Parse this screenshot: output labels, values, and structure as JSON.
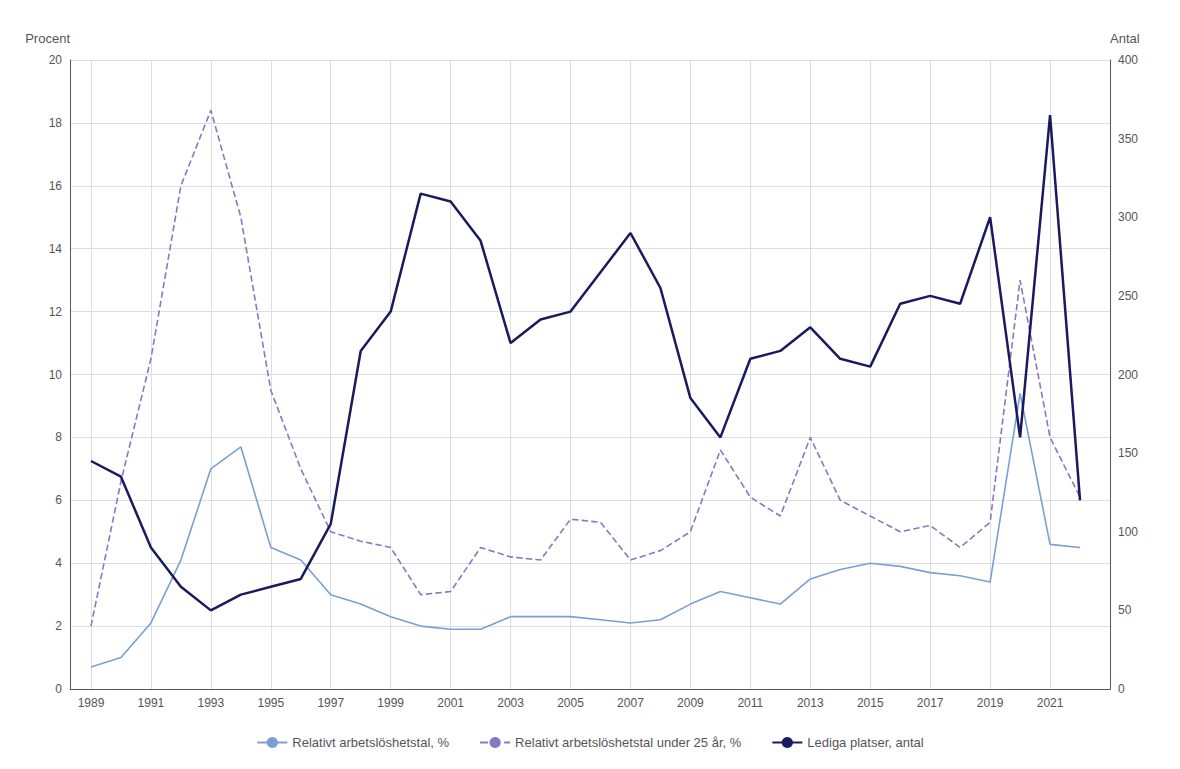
{
  "chart_data": {
    "type": "line",
    "x": [
      1989,
      1990,
      1991,
      1992,
      1993,
      1994,
      1995,
      1996,
      1997,
      1998,
      1999,
      2000,
      2001,
      2002,
      2003,
      2004,
      2005,
      2006,
      2007,
      2008,
      2009,
      2010,
      2011,
      2012,
      2013,
      2014,
      2015,
      2016,
      2017,
      2018,
      2019,
      2020,
      2021,
      2022
    ],
    "xlim": [
      1988.3,
      2023.0
    ],
    "xticks": [
      1989,
      1991,
      1993,
      1995,
      1997,
      1999,
      2001,
      2003,
      2005,
      2007,
      2009,
      2011,
      2013,
      2015,
      2017,
      2019,
      2021
    ],
    "ylim": [
      0,
      20
    ],
    "yticks": [
      0,
      2,
      4,
      6,
      8,
      10,
      12,
      14,
      16,
      18,
      20
    ],
    "y2lim": [
      0,
      400
    ],
    "y2ticks": [
      0,
      50,
      100,
      150,
      200,
      250,
      300,
      350,
      400
    ],
    "ylabel": "Procent",
    "y2label": "Antal",
    "grid": true,
    "legend": "bottom",
    "series": [
      {
        "name": "Relativt arbetslöshetstal, %",
        "color": "#7b9fd4",
        "line_style": "solid",
        "values": [
          0.7,
          1.0,
          2.1,
          4.1,
          7.0,
          7.7,
          4.5,
          4.1,
          3.0,
          2.7,
          2.3,
          2.0,
          1.9,
          1.9,
          2.3,
          2.3,
          2.3,
          2.2,
          2.1,
          2.2,
          2.7,
          3.1,
          2.9,
          2.7,
          3.5,
          3.8,
          4.0,
          3.9,
          3.7,
          3.6,
          3.4,
          9.4,
          4.6,
          4.5
        ]
      },
      {
        "name": "Relativt arbetslöshetstal under 25 år, %",
        "color": "#8878c3",
        "line_style": "dashed",
        "values": [
          2.0,
          6.6,
          10.5,
          16.0,
          18.4,
          15.0,
          9.5,
          7.0,
          5.0,
          4.7,
          4.5,
          3.0,
          3.1,
          4.5,
          4.2,
          4.1,
          5.4,
          5.3,
          4.1,
          4.4,
          5.0,
          7.6,
          6.1,
          5.5,
          8.0,
          6.0,
          5.5,
          5.0,
          5.2,
          4.5,
          5.3,
          13.0,
          8.0,
          6.1
        ]
      },
      {
        "name": "Lediga platser, antal",
        "color": "#1a1a5e",
        "line_style": "solid",
        "axis": "y2",
        "values": [
          145,
          135,
          90,
          65,
          50,
          60,
          65,
          70,
          105,
          215,
          240,
          315,
          310,
          285,
          220,
          235,
          240,
          265,
          290,
          255,
          185,
          160,
          210,
          215,
          230,
          210,
          205,
          245,
          250,
          245,
          300,
          160,
          365,
          120
        ]
      }
    ]
  }
}
